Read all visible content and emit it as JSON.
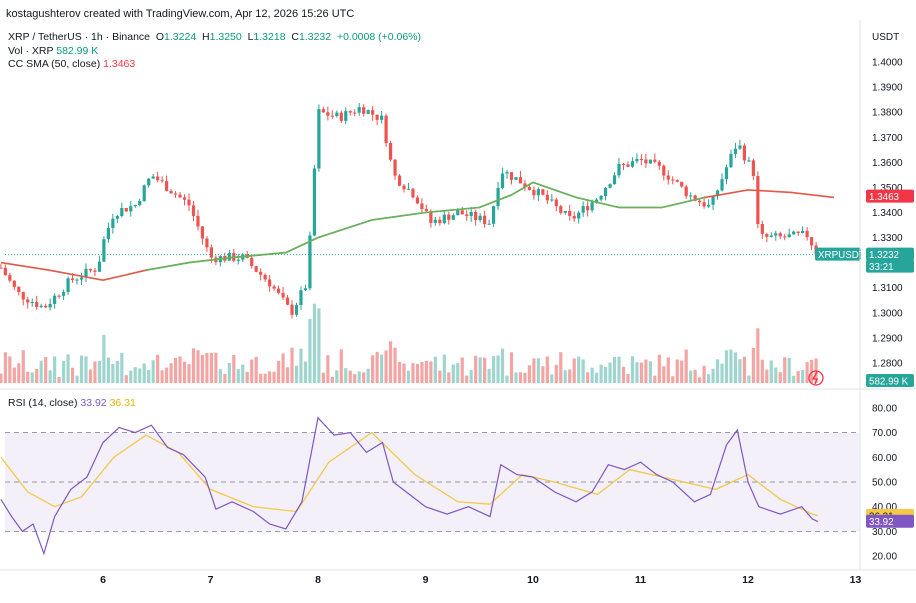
{
  "header": {
    "created_by": "kostagushterov created with TradingView.com, Apr 12, 2026 15:26 UTC"
  },
  "legend": {
    "symbol": "XRP / TetherUS · 1h · Binance",
    "o_label": "O",
    "o": "1.3224",
    "h_label": "H",
    "h": "1.3250",
    "l_label": "L",
    "l": "1.3218",
    "c_label": "C",
    "c": "1.3232",
    "change": "+0.0008 (+0.06%)",
    "vol_label": "Vol · XRP",
    "vol": "582.99 K",
    "sma_label": "CC SMA (50, close)",
    "sma": "1.3463",
    "rsi_label": "RSI (14, close)",
    "rsi": "33.92",
    "rsi_ma": "36.31"
  },
  "price_axis": {
    "unit": "USDT",
    "ticks": [
      "1.4000",
      "1.3900",
      "1.3800",
      "1.3700",
      "1.3600",
      "1.3500",
      "1.3400",
      "1.3300",
      "1.3200",
      "1.3100",
      "1.3000",
      "1.2900",
      "1.2800"
    ],
    "tags": {
      "sma": "1.3463",
      "symbol": "XRPUSDT",
      "price": "1.3232",
      "countdown": "33:21",
      "volume": "582.99 K"
    }
  },
  "rsi_axis": {
    "ticks": [
      "80.00",
      "70.00",
      "60.00",
      "50.00",
      "40.00",
      "30.00",
      "20.00"
    ],
    "rsi_tag": "33.92",
    "ma_tag": "36.31"
  },
  "time_axis": {
    "ticks": [
      "6",
      "7",
      "8",
      "9",
      "10",
      "11",
      "12",
      "13"
    ]
  },
  "colors": {
    "up": "#26a69a",
    "down": "#ef5350",
    "sma": "#e05a47",
    "rsi": "#7e57c2",
    "rsi_ma": "#f2c94c"
  },
  "chart_data": [
    {
      "type": "candlestick",
      "title": "XRP / TetherUS · 1h · Binance",
      "y_range": [
        1.272,
        1.404
      ],
      "x_day_ticks": {
        "6": 3.0,
        "7": 4.0,
        "8": 5.0,
        "9": 6.0,
        "10": 7.0,
        "11": 8.0,
        "12": 9.0,
        "13": 10.0
      },
      "approx_close_path": [
        [
          2.05,
          1.318
        ],
        [
          2.2,
          1.308
        ],
        [
          2.45,
          1.302
        ],
        [
          2.7,
          1.313
        ],
        [
          2.95,
          1.318
        ],
        [
          3.0,
          1.328
        ],
        [
          3.1,
          1.34
        ],
        [
          3.3,
          1.343
        ],
        [
          3.45,
          1.355
        ],
        [
          3.6,
          1.35
        ],
        [
          3.8,
          1.343
        ],
        [
          4.0,
          1.322
        ],
        [
          4.3,
          1.322
        ],
        [
          4.55,
          1.312
        ],
        [
          4.75,
          1.3
        ],
        [
          4.9,
          1.312
        ],
        [
          5.0,
          1.38
        ],
        [
          5.2,
          1.378
        ],
        [
          5.4,
          1.382
        ],
        [
          5.6,
          1.377
        ],
        [
          5.7,
          1.355
        ],
        [
          5.9,
          1.347
        ],
        [
          6.05,
          1.336
        ],
        [
          6.3,
          1.34
        ],
        [
          6.6,
          1.336
        ],
        [
          6.7,
          1.357
        ],
        [
          6.9,
          1.352
        ],
        [
          7.1,
          1.346
        ],
        [
          7.35,
          1.337
        ],
        [
          7.6,
          1.346
        ],
        [
          7.8,
          1.358
        ],
        [
          8.0,
          1.361
        ],
        [
          8.2,
          1.357
        ],
        [
          8.45,
          1.347
        ],
        [
          8.65,
          1.342
        ],
        [
          8.8,
          1.358
        ],
        [
          8.9,
          1.368
        ],
        [
          9.05,
          1.356
        ],
        [
          9.1,
          1.33
        ],
        [
          9.3,
          1.33
        ],
        [
          9.55,
          1.331
        ],
        [
          9.65,
          1.3232
        ]
      ],
      "sma50_path": [
        [
          2.05,
          1.32
        ],
        [
          2.5,
          1.317
        ],
        [
          3.0,
          1.313
        ],
        [
          3.4,
          1.317
        ],
        [
          3.8,
          1.32
        ],
        [
          4.2,
          1.322
        ],
        [
          4.7,
          1.324
        ],
        [
          5.0,
          1.33
        ],
        [
          5.5,
          1.337
        ],
        [
          6.0,
          1.34
        ],
        [
          6.5,
          1.342
        ],
        [
          6.8,
          1.347
        ],
        [
          7.0,
          1.352
        ],
        [
          7.4,
          1.346
        ],
        [
          7.8,
          1.342
        ],
        [
          8.2,
          1.342
        ],
        [
          8.6,
          1.346
        ],
        [
          9.0,
          1.349
        ],
        [
          9.4,
          1.348
        ],
        [
          9.8,
          1.346
        ]
      ],
      "last_close": 1.3232
    },
    {
      "type": "bar",
      "title": "Vol · XRP",
      "last": "582.99K"
    },
    {
      "type": "line",
      "title": "RSI (14, close)",
      "y_range": [
        16,
        84
      ],
      "band": [
        30,
        70
      ],
      "midline": 50,
      "rsi_path": [
        [
          2.05,
          43
        ],
        [
          2.15,
          36
        ],
        [
          2.25,
          30
        ],
        [
          2.35,
          33
        ],
        [
          2.45,
          21
        ],
        [
          2.55,
          36
        ],
        [
          2.7,
          47
        ],
        [
          2.85,
          52
        ],
        [
          3.0,
          66
        ],
        [
          3.15,
          72
        ],
        [
          3.3,
          70
        ],
        [
          3.45,
          73
        ],
        [
          3.6,
          64
        ],
        [
          3.75,
          61
        ],
        [
          3.95,
          52
        ],
        [
          4.05,
          39
        ],
        [
          4.2,
          42
        ],
        [
          4.4,
          38
        ],
        [
          4.55,
          33
        ],
        [
          4.7,
          31
        ],
        [
          4.85,
          42
        ],
        [
          5.0,
          76
        ],
        [
          5.15,
          69
        ],
        [
          5.3,
          70
        ],
        [
          5.45,
          62
        ],
        [
          5.6,
          66
        ],
        [
          5.7,
          50
        ],
        [
          5.85,
          45
        ],
        [
          6.0,
          40
        ],
        [
          6.2,
          37
        ],
        [
          6.4,
          40
        ],
        [
          6.6,
          36
        ],
        [
          6.7,
          57
        ],
        [
          6.85,
          53
        ],
        [
          7.0,
          52
        ],
        [
          7.2,
          46
        ],
        [
          7.4,
          42
        ],
        [
          7.55,
          46
        ],
        [
          7.7,
          57
        ],
        [
          7.85,
          55
        ],
        [
          8.0,
          58
        ],
        [
          8.15,
          53
        ],
        [
          8.3,
          50
        ],
        [
          8.5,
          42
        ],
        [
          8.65,
          45
        ],
        [
          8.8,
          65
        ],
        [
          8.9,
          71
        ],
        [
          9.0,
          50
        ],
        [
          9.1,
          40
        ],
        [
          9.3,
          37
        ],
        [
          9.5,
          40
        ],
        [
          9.6,
          35
        ],
        [
          9.65,
          34
        ]
      ],
      "rsi_ma_path": [
        [
          2.05,
          60
        ],
        [
          2.3,
          46
        ],
        [
          2.55,
          40
        ],
        [
          2.8,
          44
        ],
        [
          3.1,
          60
        ],
        [
          3.4,
          69
        ],
        [
          3.7,
          62
        ],
        [
          4.0,
          47
        ],
        [
          4.4,
          40
        ],
        [
          4.8,
          38
        ],
        [
          5.1,
          58
        ],
        [
          5.5,
          70
        ],
        [
          5.9,
          53
        ],
        [
          6.3,
          42
        ],
        [
          6.6,
          41
        ],
        [
          6.9,
          53
        ],
        [
          7.2,
          50
        ],
        [
          7.6,
          45
        ],
        [
          7.9,
          55
        ],
        [
          8.3,
          51
        ],
        [
          8.7,
          47
        ],
        [
          9.0,
          53
        ],
        [
          9.3,
          43
        ],
        [
          9.6,
          37
        ],
        [
          9.65,
          36.3
        ]
      ],
      "last_rsi": 33.92,
      "last_ma": 36.31
    }
  ]
}
